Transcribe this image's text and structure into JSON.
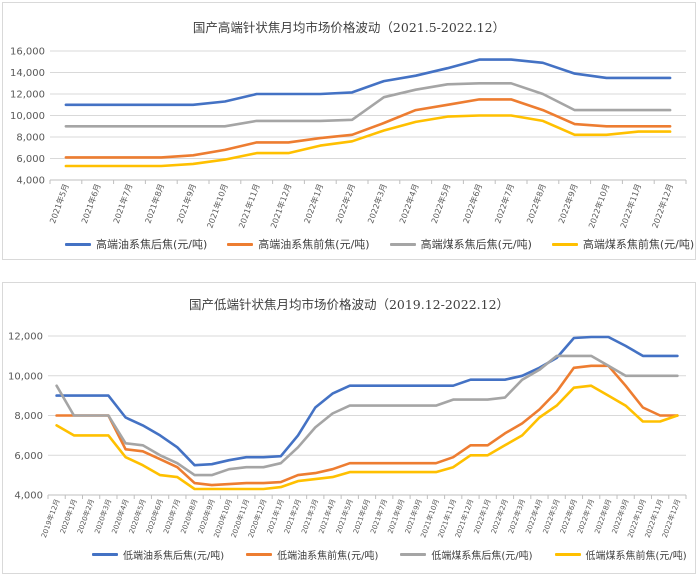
{
  "chart_data": [
    {
      "type": "line",
      "title": "国产高端针状焦月均市场价格波动（2021.5-2022.12）",
      "xlabel": "",
      "ylabel": "",
      "ylim": [
        4000,
        16000
      ],
      "yticks": [
        "4,000",
        "6,000",
        "8,000",
        "10,000",
        "12,000",
        "14,000",
        "16,000"
      ],
      "ytick_values": [
        4000,
        6000,
        8000,
        10000,
        12000,
        14000,
        16000
      ],
      "grid": true,
      "legend": "bottom",
      "categories": [
        "2021年5月",
        "2021年6月",
        "2021年7月",
        "2021年8月",
        "2021年9月",
        "2021年10月",
        "2021年11月",
        "2021年12月",
        "2022年1月",
        "2022年2月",
        "2022年3月",
        "2022年4月",
        "2022年5月",
        "2022年6月",
        "2022年7月",
        "2022年8月",
        "2022年9月",
        "2022年10月",
        "2022年11月",
        "2022年12月"
      ],
      "series": [
        {
          "name": "高端油系焦后焦(元/吨)",
          "color": "#4472c4",
          "values": [
            11000,
            11000,
            11000,
            11000,
            11000,
            11300,
            12000,
            12000,
            12000,
            12150,
            13200,
            13700,
            14400,
            15200,
            15200,
            14900,
            13900,
            13500,
            13500,
            13500
          ]
        },
        {
          "name": "高端油系焦前焦(元/吨)",
          "color": "#ed7d31",
          "values": [
            6100,
            6100,
            6100,
            6100,
            6300,
            6800,
            7500,
            7500,
            7900,
            8200,
            9300,
            10500,
            11000,
            11500,
            11500,
            10500,
            9200,
            9000,
            9000,
            9000
          ]
        },
        {
          "name": "高端煤系焦后焦(元/吨)",
          "color": "#a5a5a5",
          "values": [
            9000,
            9000,
            9000,
            9000,
            9000,
            9000,
            9500,
            9500,
            9500,
            9600,
            11700,
            12400,
            12900,
            13000,
            13000,
            12000,
            10500,
            10500,
            10500,
            10500
          ]
        },
        {
          "name": "高端煤系焦前焦(元/吨)",
          "color": "#ffc000",
          "values": [
            5300,
            5300,
            5300,
            5300,
            5500,
            5900,
            6500,
            6500,
            7200,
            7600,
            8600,
            9400,
            9900,
            10000,
            10000,
            9500,
            8200,
            8200,
            8500,
            8500
          ]
        }
      ]
    },
    {
      "type": "line",
      "title": "国产低端针状焦月均市场价格波动（2019.12-2022.12）",
      "xlabel": "",
      "ylabel": "",
      "ylim": [
        4000,
        12000
      ],
      "yticks": [
        "4,000",
        "6,000",
        "8,000",
        "10,000",
        "12,000"
      ],
      "ytick_values": [
        4000,
        6000,
        8000,
        10000,
        12000
      ],
      "grid": true,
      "legend": "bottom",
      "categories": [
        "2019年12月",
        "2020年1月",
        "2020年2月",
        "2020年3月",
        "2020年4月",
        "2020年5月",
        "2020年6月",
        "2020年7月",
        "2020年8月",
        "2020年9月",
        "2020年10月",
        "2020年11月",
        "2020年12月",
        "2021年1月",
        "2021年2月",
        "2021年3月",
        "2021年4月",
        "2021年5月",
        "2021年6月",
        "2021年7月",
        "2021年8月",
        "2021年9月",
        "2021年10月",
        "2021年11月",
        "2021年12月",
        "2022年1月",
        "2022年2月",
        "2022年3月",
        "2022年4月",
        "2022年5月",
        "2022年6月",
        "2022年7月",
        "2022年8月",
        "2022年9月",
        "2022年10月",
        "2022年11月",
        "2022年12月"
      ],
      "series": [
        {
          "name": "低端油系焦后焦(元/吨)",
          "color": "#4472c4",
          "values": [
            9000,
            9000,
            9000,
            9000,
            7900,
            7500,
            7000,
            6400,
            5500,
            5550,
            5750,
            5900,
            5900,
            5950,
            7000,
            8400,
            9100,
            9500,
            9500,
            9500,
            9500,
            9500,
            9500,
            9500,
            9800,
            9800,
            9800,
            10000,
            10400,
            10900,
            11900,
            11950,
            11950,
            11500,
            11000,
            11000,
            11000
          ]
        },
        {
          "name": "低端油系焦前焦(元/吨)",
          "color": "#ed7d31",
          "values": [
            8000,
            8000,
            8000,
            8000,
            6300,
            6200,
            5800,
            5400,
            4600,
            4500,
            4550,
            4600,
            4600,
            4650,
            5000,
            5100,
            5300,
            5600,
            5600,
            5600,
            5600,
            5600,
            5600,
            5900,
            6500,
            6500,
            7100,
            7600,
            8300,
            9200,
            10400,
            10500,
            10500,
            9500,
            8400,
            8000,
            8000
          ]
        },
        {
          "name": "低端煤系焦后焦(元/吨)",
          "color": "#a5a5a5",
          "values": [
            9500,
            8000,
            8000,
            8000,
            6600,
            6500,
            6000,
            5600,
            5000,
            5000,
            5300,
            5400,
            5400,
            5600,
            6400,
            7400,
            8100,
            8500,
            8500,
            8500,
            8500,
            8500,
            8500,
            8800,
            8800,
            8800,
            8900,
            9800,
            10300,
            11000,
            11000,
            11000,
            10500,
            10000,
            10000,
            10000,
            10000
          ]
        },
        {
          "name": "低端煤系焦前焦(元/吨)",
          "color": "#ffc000",
          "values": [
            7500,
            7000,
            7000,
            7000,
            5900,
            5500,
            5000,
            4900,
            4300,
            4300,
            4300,
            4300,
            4300,
            4400,
            4700,
            4800,
            4900,
            5150,
            5150,
            5150,
            5150,
            5150,
            5150,
            5400,
            6000,
            6000,
            6500,
            7000,
            7900,
            8500,
            9400,
            9500,
            9000,
            8500,
            7700,
            7700,
            8000
          ]
        }
      ]
    }
  ]
}
